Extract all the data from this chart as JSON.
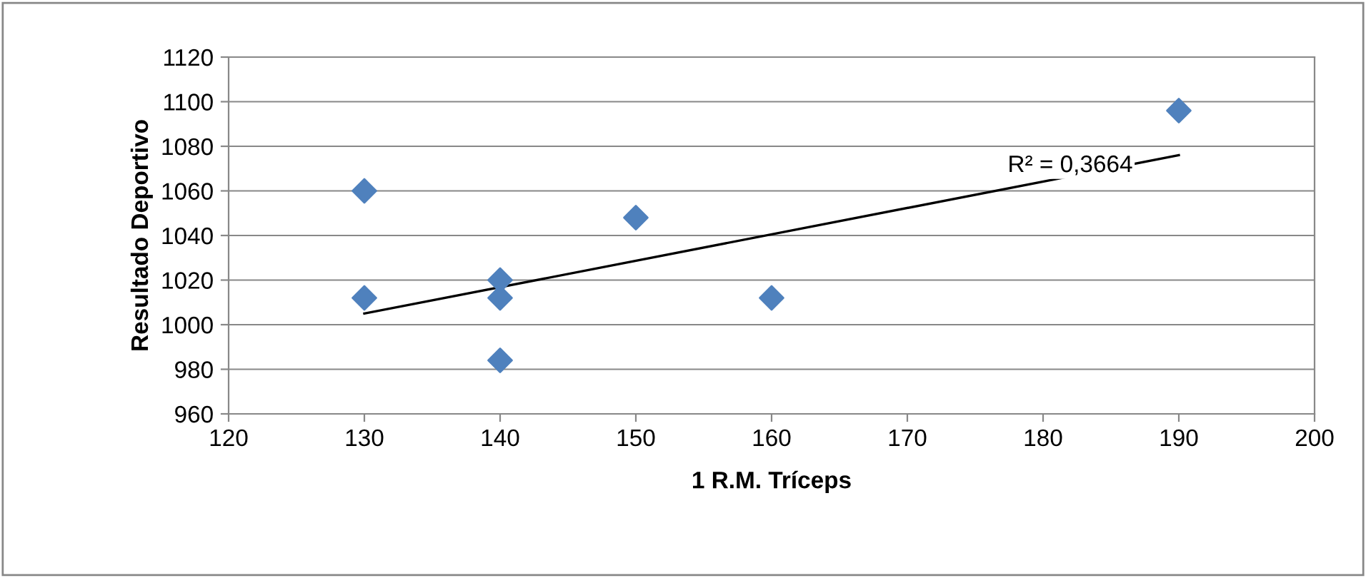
{
  "chart_data": {
    "type": "scatter",
    "xlabel": "1 R.M. Tríceps",
    "ylabel": "Resultado Deportivo",
    "x": [
      130,
      130,
      140,
      140,
      140,
      150,
      160,
      190
    ],
    "series": [
      {
        "color": "#4f81bd",
        "marker": "diamond",
        "values": [
          1060,
          1012,
          1020,
          1012,
          984,
          1048,
          1012,
          1096
        ]
      },
      {
        "type": "line",
        "color": "#000000",
        "marker": "none",
        "line_style": "solid",
        "x": [
          130,
          190
        ],
        "values": [
          1005,
          1076
        ]
      }
    ],
    "annotations": [
      "R² = 0,3664"
    ],
    "xlim": [
      120,
      200
    ],
    "xticks": [
      120,
      130,
      140,
      150,
      160,
      170,
      180,
      190,
      200
    ],
    "ylim": [
      960,
      1120
    ],
    "yticks": [
      960,
      980,
      1000,
      1020,
      1040,
      1060,
      1080,
      1100,
      1120
    ],
    "grid": "y",
    "legend": false
  }
}
